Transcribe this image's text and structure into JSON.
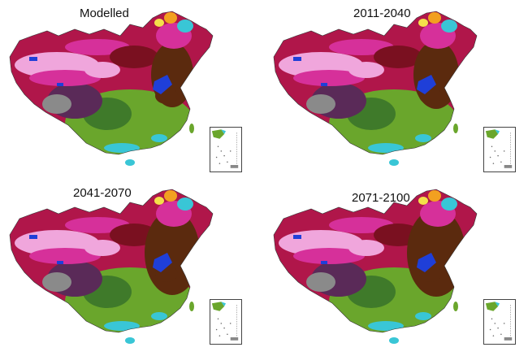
{
  "figure": {
    "panels": [
      {
        "title": "Modelled"
      },
      {
        "title": "2011-2040"
      },
      {
        "title": "2041-2070"
      },
      {
        "title": "2071-2100"
      }
    ],
    "palette": {
      "north_pink": "#f0a6dc",
      "magenta": "#d6309a",
      "crimson": "#b0164a",
      "dark_purple": "#5a2a58",
      "brown": "#5b2a0e",
      "dark_red": "#7a1020",
      "green": "#6aa62c",
      "dark_green": "#3f7a2a",
      "blue": "#1f3fd8",
      "cyan": "#39c6d6",
      "orange": "#f2a020",
      "yellow": "#f4e04a",
      "gray": "#8a8a8a"
    }
  }
}
